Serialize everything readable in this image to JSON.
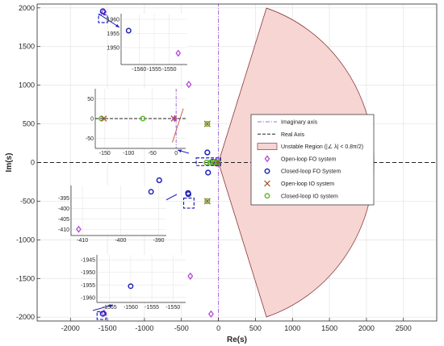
{
  "chart_data": {
    "type": "scatter",
    "xlabel": "Re(s)",
    "ylabel": "Im(s)",
    "xlim": [
      -2450,
      2950
    ],
    "ylim": [
      -2050,
      2050
    ],
    "xticks": [
      -2000,
      -1500,
      -1000,
      -500,
      0,
      500,
      1000,
      1500,
      2000,
      2500
    ],
    "yticks": [
      -2000,
      -1500,
      -1000,
      -500,
      0,
      500,
      1000,
      1500,
      2000
    ],
    "grid": true,
    "legend_position": "center-right",
    "unstable_region": {
      "label": "Unstable Region (|∠ λ| < 0.8π/2)",
      "radius": 2100,
      "half_angle_deg": 72,
      "color": "#f6d5d3"
    },
    "series": [
      {
        "name": "Imaginary axis",
        "style": "dashdot",
        "color": "#a46ad8",
        "x": [
          0,
          0
        ],
        "y": [
          -2050,
          2050
        ]
      },
      {
        "name": "Real Axis",
        "style": "dashed",
        "color": "#222222",
        "x": [
          -2450,
          2950
        ],
        "y": [
          0,
          0
        ]
      },
      {
        "name": "Open-loop FO system",
        "marker": "diamond",
        "color": "#b24ad6",
        "x": [
          -1547,
          -1547,
          -460,
          -400,
          -380,
          -100,
          -30,
          -20
        ],
        "y": [
          1948,
          -1947,
          1470,
          1010,
          -1470,
          -1960,
          10,
          -10
        ]
      },
      {
        "name": "Closed-loop FO System",
        "marker": "circle",
        "color": "#1f22b8",
        "x": [
          -1563,
          -1563,
          -410,
          -406,
          -800,
          -150,
          -140,
          -80,
          -1085,
          -25
        ],
        "y": [
          1956,
          -1956,
          -395,
          -410,
          -230,
          130,
          -130,
          10,
          -1630,
          0
        ]
      },
      {
        "name": "Open-loop IO system",
        "marker": "x",
        "color": "#a0522d",
        "x": [
          -150,
          -150,
          -70,
          -10,
          -10,
          -10
        ],
        "y": [
          500,
          -500,
          0,
          10,
          -10,
          0
        ]
      },
      {
        "name": "Closed-loop IO system",
        "marker": "circle",
        "color": "#63b82a",
        "x": [
          -150,
          -150,
          -160,
          -70,
          -5,
          -110
        ],
        "y": [
          500,
          -500,
          0,
          0,
          0,
          0
        ]
      }
    ],
    "insets": [
      {
        "xlim": [
          -1566,
          -1544
        ],
        "ylim": [
          1944,
          1962
        ],
        "xticks": [
          -1560,
          -1555,
          -1550
        ],
        "yticks": [
          1950,
          1955,
          1960
        ],
        "points": [
          {
            "series": "Closed-loop FO System",
            "x": -1563.5,
            "y": 1956
          },
          {
            "series": "Open-loop FO system",
            "x": -1547,
            "y": 1948
          }
        ]
      },
      {
        "xlim": [
          -170,
          20
        ],
        "ylim": [
          -75,
          75
        ],
        "xticks": [
          -150,
          -100,
          -50,
          0
        ],
        "yticks": [
          -50,
          0,
          50
        ],
        "points": [
          {
            "series": "Closed-loop IO system",
            "x": -157,
            "y": 0
          },
          {
            "series": "Closed-loop IO system",
            "x": -70,
            "y": 0
          },
          {
            "series": "Open-loop IO system",
            "x": -152,
            "y": 0
          },
          {
            "series": "Open-loop IO system",
            "x": -5,
            "y": 0
          },
          {
            "series": "Open-loop FO system",
            "x": -3,
            "y": 0
          }
        ]
      },
      {
        "xlim": [
          -413,
          -388
        ],
        "ylim": [
          -413,
          -389
        ],
        "xticks": [
          -410,
          -400,
          -390
        ],
        "yticks": [
          -395,
          -400,
          -405,
          -410
        ],
        "points": [
          {
            "series": "Open-loop FO system",
            "x": -411,
            "y": -410
          },
          {
            "series": "Closed-loop FO System",
            "x": -392,
            "y": -392
          }
        ]
      },
      {
        "xlim": [
          -1568,
          -1547
        ],
        "ylim": [
          -1962,
          -1943
        ],
        "xticks": [
          -1565,
          -1560,
          -1555,
          -1550
        ],
        "yticks": [
          -1945,
          -1950,
          -1955,
          -1960
        ],
        "points": [
          {
            "series": "Closed-loop FO System",
            "x": -1560,
            "y": -1955.5
          }
        ]
      }
    ]
  }
}
